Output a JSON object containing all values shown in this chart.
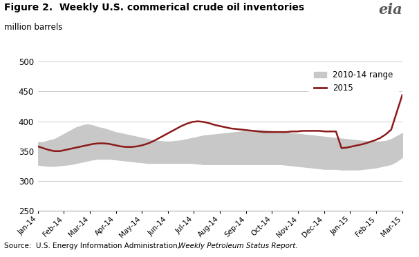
{
  "title": "Figure 2.  Weekly U.S. commerical crude oil inventories",
  "subtitle": "million barrels",
  "source_normal": "Source:  U.S. Energy Information Administration, ",
  "source_italic": "Weekly Petroleum Status Report.",
  "ylim": [
    250,
    500
  ],
  "yticks": [
    250,
    300,
    350,
    400,
    450,
    500
  ],
  "x_labels": [
    "Jan-14",
    "Feb-14",
    "Mar-14",
    "Apr-14",
    "May-14",
    "Jun-14",
    "Jul-14",
    "Aug-14",
    "Sep-14",
    "Oct-14",
    "Nov-14",
    "Dec-14",
    "Jan-15",
    "Feb-15",
    "Mar-15"
  ],
  "range_color": "#c8c8c8",
  "line_color": "#8b1a1a",
  "legend_range_label": "2010-14 range",
  "legend_line_label": "2015",
  "upper": [
    365,
    365,
    368,
    370,
    375,
    380,
    385,
    390,
    393,
    395,
    393,
    390,
    388,
    385,
    382,
    380,
    378,
    376,
    374,
    372,
    370,
    368,
    367,
    366,
    366,
    367,
    368,
    370,
    372,
    374,
    376,
    377,
    378,
    379,
    380,
    381,
    382,
    383,
    384,
    385,
    385,
    385,
    384,
    383,
    382,
    381,
    380,
    379,
    378,
    377,
    376,
    375,
    374,
    373,
    372,
    371,
    370,
    369,
    368,
    367,
    366,
    366,
    366,
    367,
    370,
    375,
    380
  ],
  "lower": [
    327,
    326,
    325,
    325,
    326,
    327,
    328,
    330,
    332,
    334,
    336,
    337,
    337,
    337,
    336,
    335,
    334,
    333,
    332,
    331,
    330,
    330,
    330,
    330,
    330,
    330,
    330,
    330,
    330,
    329,
    328,
    328,
    328,
    328,
    328,
    328,
    328,
    328,
    328,
    328,
    328,
    328,
    328,
    328,
    328,
    327,
    326,
    325,
    324,
    323,
    322,
    321,
    320,
    320,
    320,
    319,
    319,
    319,
    319,
    320,
    321,
    322,
    324,
    326,
    328,
    333,
    340
  ],
  "line2015": [
    358,
    355,
    352,
    350,
    350,
    352,
    354,
    356,
    358,
    360,
    362,
    363,
    363,
    362,
    360,
    358,
    357,
    357,
    358,
    360,
    363,
    367,
    372,
    377,
    382,
    387,
    392,
    396,
    399,
    400,
    399,
    397,
    394,
    392,
    390,
    388,
    387,
    386,
    385,
    384,
    383,
    382,
    382,
    382,
    382,
    382,
    383,
    383,
    384,
    384,
    384,
    384,
    383,
    383,
    383,
    355,
    356,
    358,
    360,
    362,
    365,
    368,
    372,
    378,
    386,
    415,
    444
  ]
}
